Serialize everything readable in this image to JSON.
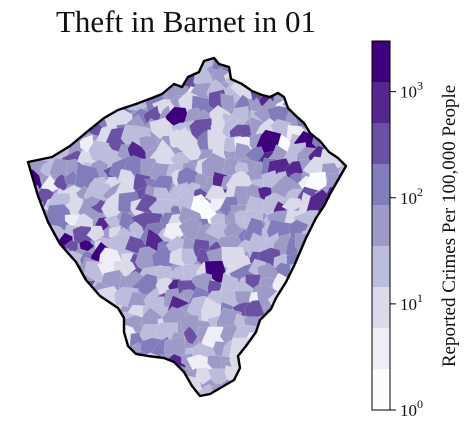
{
  "title": "Theft in Barnet in 01",
  "colorbar": {
    "label": "Reported Crimes Per 100,000 People",
    "scale": "log",
    "range": [
      1,
      3000
    ],
    "ticks": [
      {
        "base": "10",
        "exp": "0",
        "value": 1
      },
      {
        "base": "10",
        "exp": "1",
        "value": 10
      },
      {
        "base": "10",
        "exp": "2",
        "value": 100
      },
      {
        "base": "10",
        "exp": "3",
        "value": 1000
      }
    ],
    "colors": [
      "#fcfbfd",
      "#efedf5",
      "#dadaeb",
      "#bcbddc",
      "#9e9ac8",
      "#807dba",
      "#6a51a3",
      "#54278f",
      "#3f007d"
    ]
  },
  "map": {
    "region": "Barnet",
    "border_color": "#000000"
  }
}
